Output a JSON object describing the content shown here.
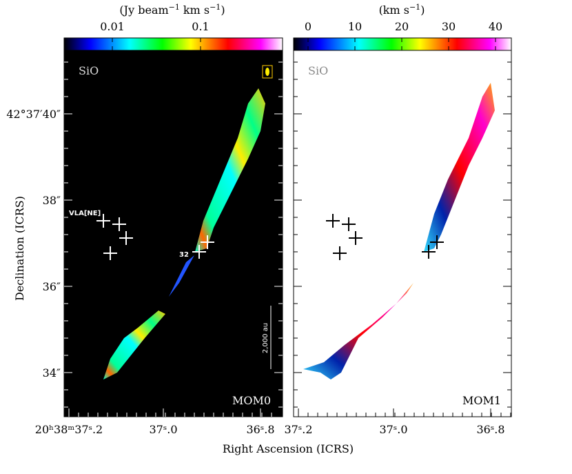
{
  "colorbars": [
    {
      "unit_parts": [
        {
          "text": "(Jy beam"
        },
        {
          "text": "−1",
          "sup": true
        },
        {
          "text": " km s"
        },
        {
          "text": "−1",
          "sup": true
        },
        {
          "text": ")"
        }
      ],
      "ticks": [
        "0.01",
        "0.1"
      ]
    },
    {
      "unit_parts": [
        {
          "text": "(km s"
        },
        {
          "text": "−1",
          "sup": true
        },
        {
          "text": ")"
        }
      ],
      "ticks": [
        "0",
        "10",
        "20",
        "30",
        "40"
      ]
    }
  ],
  "panels": [
    {
      "line": "SiO",
      "label": "MOM0",
      "source_labels": [
        "VLA[NE]",
        "32"
      ],
      "scale_bar": "2,000 au",
      "x_tick_labels": [
        "20ʰ38ᵐ37ˢ.2",
        "37ˢ.0",
        "36ˢ.8"
      ]
    },
    {
      "line": "SiO",
      "label": "MOM1",
      "x_tick_labels": [
        "37ˢ.2",
        "37ˢ.0",
        "36ˢ.8"
      ]
    }
  ],
  "y_tick_labels": [
    "42°37′40″",
    "38″",
    "36″",
    "34″"
  ],
  "y_label": "Declination (ICRS)",
  "x_label": "Right Ascension (ICRS)"
}
